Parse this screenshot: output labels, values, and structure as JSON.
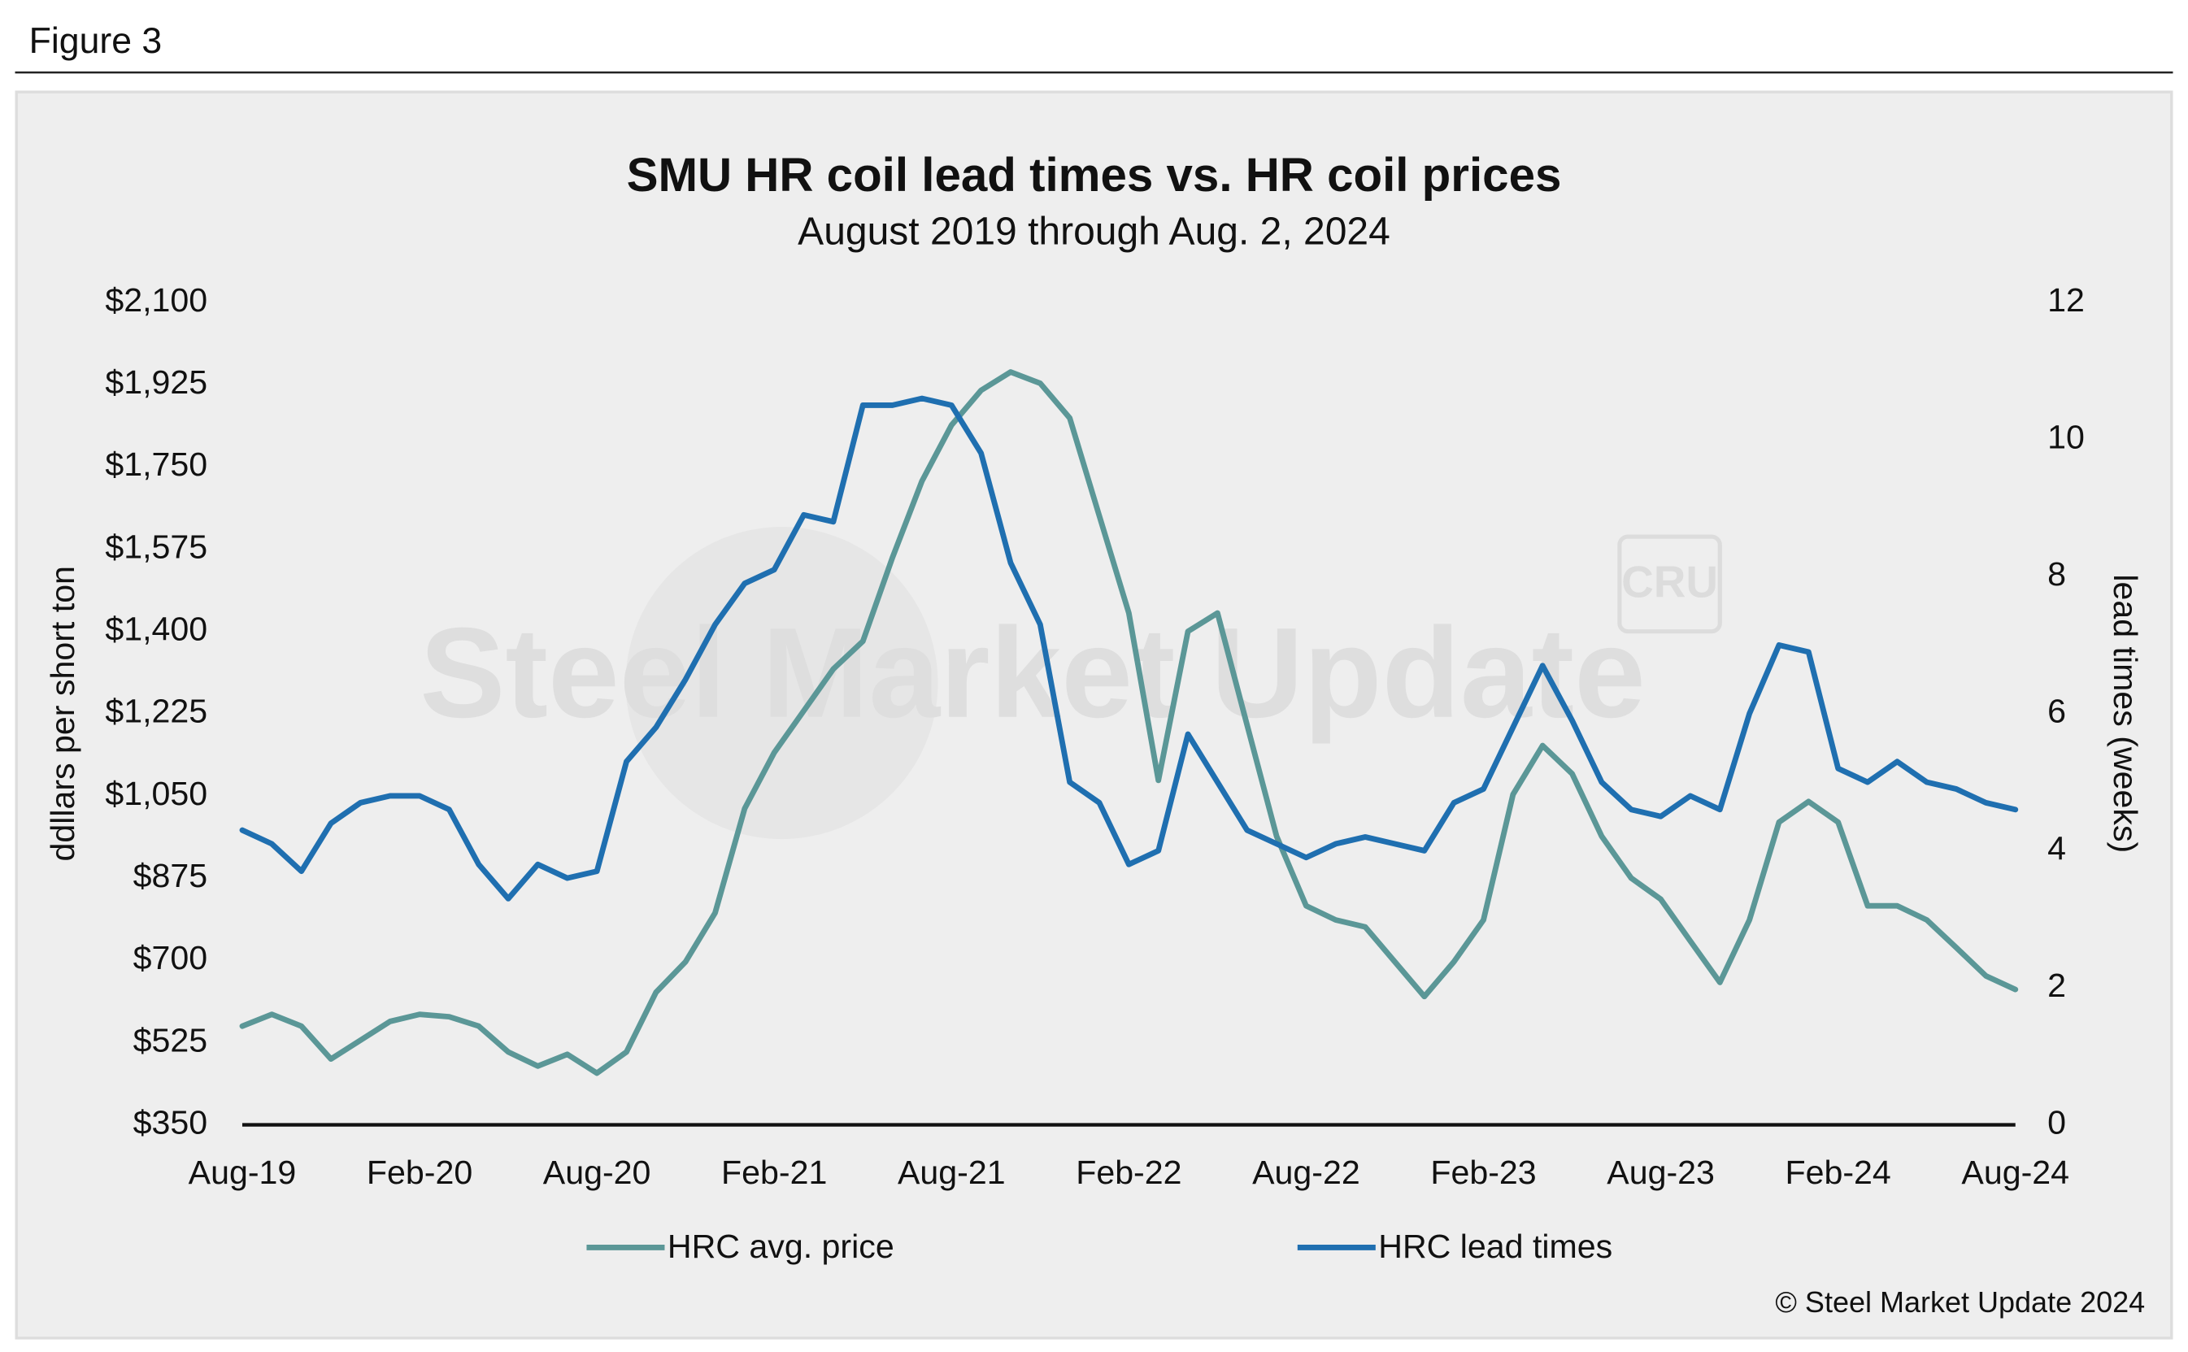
{
  "figure_label": "Figure 3",
  "chart_data": {
    "type": "line",
    "title": "SMU HR coil lead times vs. HR coil prices",
    "subtitle": "August 2019 through Aug. 2, 2024",
    "y_label": "ddllars per short ton",
    "y2_label": "lead times (weeks)",
    "watermark": "Steel Market Update",
    "watermark_logo": "CRU",
    "copyright": "© Steel Market Update 2024",
    "categories": [
      "Aug-19",
      null,
      null,
      null,
      null,
      null,
      "Feb-20",
      null,
      null,
      null,
      null,
      null,
      "Aug-20",
      null,
      null,
      null,
      null,
      null,
      "Feb-21",
      null,
      null,
      null,
      null,
      null,
      "Aug-21",
      null,
      null,
      null,
      null,
      null,
      "Feb-22",
      null,
      null,
      null,
      null,
      null,
      "Aug-22",
      null,
      null,
      null,
      null,
      null,
      "Feb-23",
      null,
      null,
      null,
      null,
      null,
      "Aug-23",
      null,
      null,
      null,
      null,
      null,
      "Feb-24",
      null,
      null,
      null,
      null,
      null,
      "Aug-24"
    ],
    "series": [
      {
        "name": "HRC avg. price",
        "color": "#5b9797",
        "axis": "y",
        "values": [
          560,
          585,
          560,
          490,
          530,
          570,
          585,
          580,
          560,
          505,
          475,
          500,
          460,
          505,
          632,
          697,
          801,
          1023,
          1142,
          1231,
          1320,
          1379,
          1557,
          1720,
          1839,
          1913,
          1952,
          1928,
          1854,
          1646,
          1439,
          1083,
          1400,
          1439,
          1201,
          964,
          816,
          786,
          771,
          697,
          623,
          697,
          786,
          1053,
          1157,
          1097,
          964,
          875,
          830,
          741,
          653,
          786,
          994,
          1038,
          994,
          816,
          816,
          786,
          727,
          667,
          638
        ]
      },
      {
        "name": "HRC lead times",
        "color": "#1f6fb0",
        "axis": "y2",
        "values": [
          4.3,
          4.1,
          3.7,
          4.4,
          4.7,
          4.8,
          4.8,
          4.6,
          3.8,
          3.3,
          3.8,
          3.6,
          3.7,
          5.3,
          5.8,
          6.5,
          7.3,
          7.9,
          8.1,
          8.9,
          8.8,
          10.5,
          10.5,
          10.6,
          10.5,
          9.8,
          8.2,
          7.3,
          5.0,
          4.7,
          3.8,
          4.0,
          5.7,
          5.0,
          4.3,
          4.1,
          3.9,
          4.1,
          4.2,
          4.1,
          4.0,
          4.7,
          4.9,
          5.8,
          6.7,
          5.9,
          5.0,
          4.6,
          4.5,
          4.8,
          4.6,
          6.0,
          7.0,
          6.9,
          5.2,
          5.0,
          5.3,
          5.0,
          4.9,
          4.7,
          4.6
        ]
      }
    ],
    "ylim": [
      350,
      2100
    ],
    "yticks": [
      {
        "value": 350,
        "label": "$350"
      },
      {
        "value": 525,
        "label": "$525"
      },
      {
        "value": 700,
        "label": "$700"
      },
      {
        "value": 875,
        "label": "$875"
      },
      {
        "value": 1050,
        "label": "$1,050"
      },
      {
        "value": 1225,
        "label": "$1,225"
      },
      {
        "value": 1400,
        "label": "$1,400"
      },
      {
        "value": 1575,
        "label": "$1,575"
      },
      {
        "value": 1750,
        "label": "$1,750"
      },
      {
        "value": 1925,
        "label": "$1,925"
      },
      {
        "value": 2100,
        "label": "$2,100"
      }
    ],
    "y2lim": [
      0,
      12
    ],
    "y2ticks": [
      0,
      2,
      4,
      6,
      8,
      10,
      12
    ],
    "grid": false,
    "legend": "bottom"
  }
}
